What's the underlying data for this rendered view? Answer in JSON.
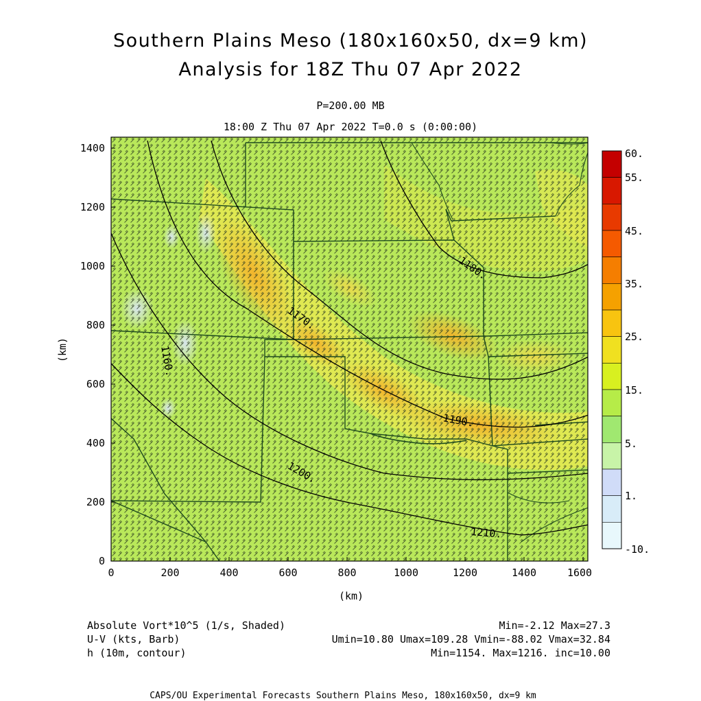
{
  "title_line1": "Southern Plains Meso (180x160x50, dx=9 km)",
  "title_line2": "Analysis for 18Z Thu 07 Apr 2022",
  "level_label": "P=200.00 MB",
  "valid_time": "18:00 Z Thu 07 Apr 2022    T=0.0 s (0:00:00)",
  "x_axis_unit": "(km)",
  "y_axis_unit": "(km)",
  "x_ticks": [
    "0",
    "200",
    "400",
    "600",
    "800",
    "1000",
    "1200",
    "1400",
    "1600"
  ],
  "y_ticks": [
    "0",
    "200",
    "400",
    "600",
    "800",
    "1000",
    "1200",
    "1400"
  ],
  "colorbar_labels": [
    "60.",
    "55.",
    "45.",
    "35.",
    "25.",
    "15.",
    "5.",
    "1.",
    "-10."
  ],
  "colorbar_colors": [
    "#c40000",
    "#d81800",
    "#e83a00",
    "#f55a00",
    "#f57e00",
    "#f5a100",
    "#f8c410",
    "#f0e020",
    "#d8f020",
    "#b6ec48",
    "#a0e870",
    "#c8f4a8",
    "#d0dcf8",
    "#d8ecf8",
    "#e8f8fc"
  ],
  "contour_labels": [
    "1160.",
    "1170.",
    "1180.",
    "1190.",
    "1200.",
    "1210."
  ],
  "footer": {
    "field1_name": "Absolute Vort*10^5 (1/s, Shaded)",
    "field1_stats": "Min=-2.12 Max=27.3",
    "field2_name": "U-V (kts, Barb)",
    "field2_stats": "Umin=10.80 Umax=109.28 Vmin=-88.02 Vmax=32.84",
    "field3_name": "h (10m, contour)",
    "field3_stats": "Min=1154. Max=1216. inc=10.00",
    "credit": "CAPS/OU Experimental Forecasts  Southern Plains Meso, 180x160x50, dx=9 km"
  }
}
